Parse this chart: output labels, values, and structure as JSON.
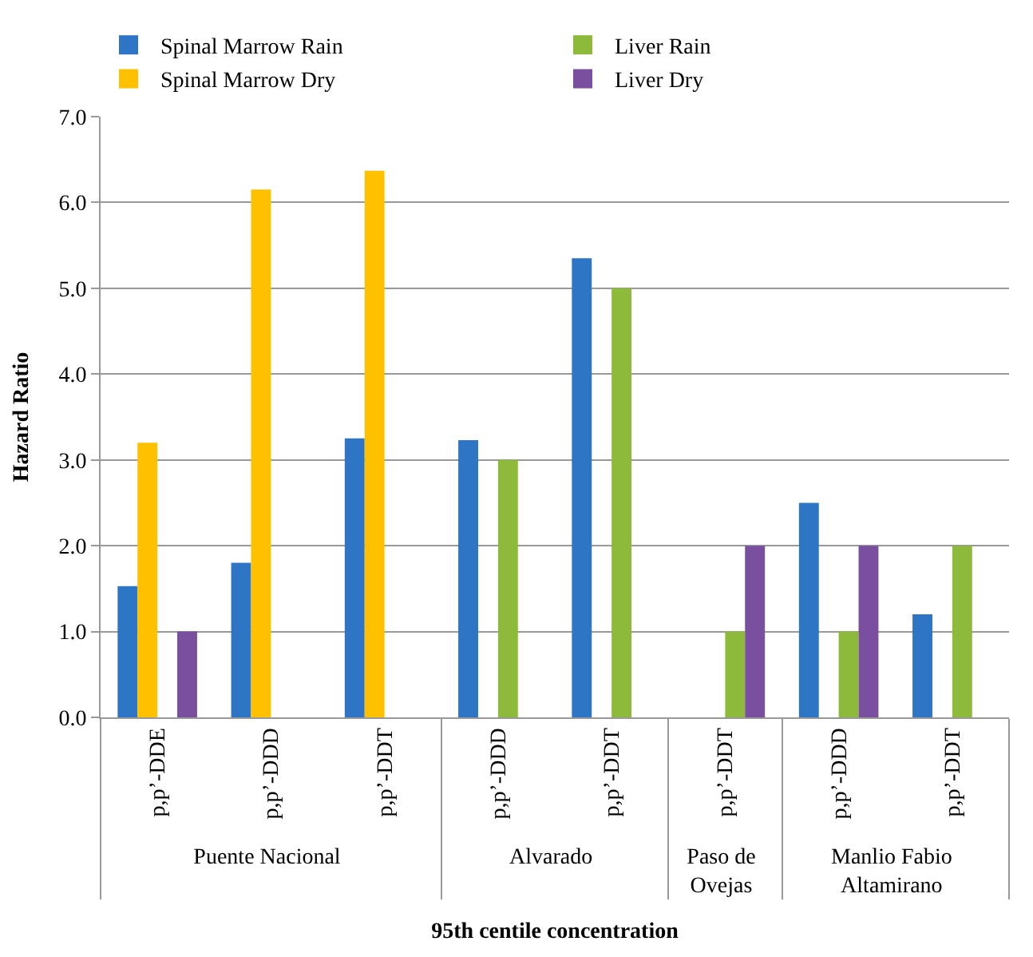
{
  "chart_data": {
    "type": "bar",
    "xlabel": "95th centile concentration",
    "ylabel": "Hazard Ratio",
    "categories": [
      "p,p’-DDE",
      "p,p’-DDD",
      "p,p’-DDT",
      "p,p’-DDD",
      "p,p’-DDT",
      "p,p’-DDT",
      "p,p’-DDD",
      "p,p’-DDT"
    ],
    "annotations": [
      "Puente Nacional",
      "Alvarado",
      "Paso de Ovejas",
      "Manlio Fabio Altamirano"
    ],
    "series": [
      {
        "name": "Spinal Marrow Rain",
        "color": "#2e75c6",
        "values": [
          1.53,
          1.8,
          3.25,
          3.23,
          5.35,
          null,
          2.5,
          1.2
        ]
      },
      {
        "name": "Spinal Marrow Dry",
        "color": "#ffc000",
        "values": [
          3.2,
          6.15,
          6.37,
          null,
          null,
          null,
          null,
          null
        ]
      },
      {
        "name": "Liver Rain",
        "color": "#8dba3a",
        "values": [
          null,
          null,
          null,
          3.0,
          5.0,
          1.0,
          1.0,
          2.0
        ]
      },
      {
        "name": "Liver Dry",
        "color": "#7a4fa0",
        "values": [
          1.0,
          null,
          null,
          null,
          null,
          2.0,
          2.0,
          null
        ]
      }
    ],
    "ylim": [
      0,
      7
    ],
    "yticks": [
      {
        "value": 0,
        "label": "0.0"
      },
      {
        "value": 1,
        "label": "1.0"
      },
      {
        "value": 2,
        "label": "2.0"
      },
      {
        "value": 3,
        "label": "3.0"
      },
      {
        "value": 4,
        "label": "4.0"
      },
      {
        "value": 5,
        "label": "5.0"
      },
      {
        "value": 6,
        "label": "6.0"
      },
      {
        "value": 7,
        "label": "7.0"
      }
    ],
    "grid": "y",
    "legend": "top"
  }
}
